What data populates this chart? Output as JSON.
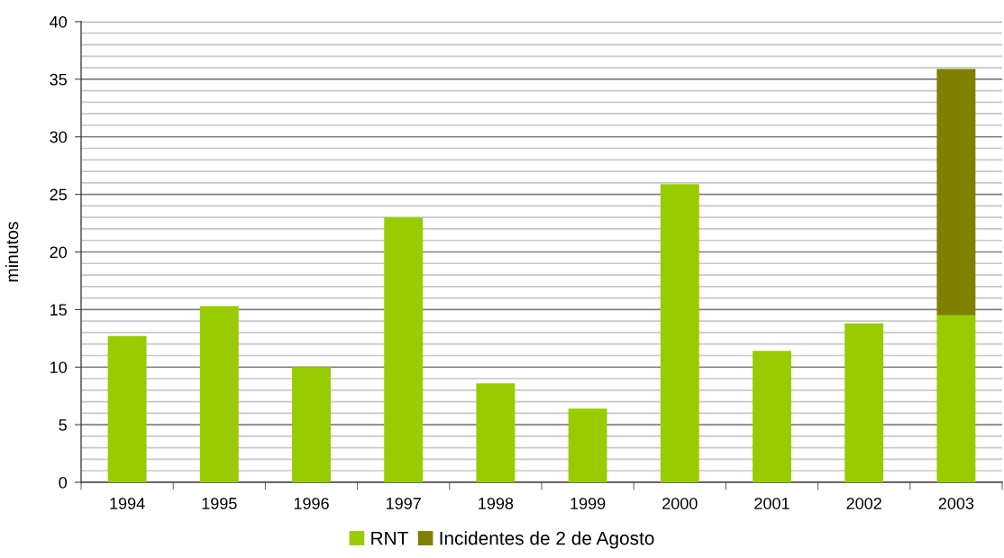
{
  "chart_data": {
    "type": "bar",
    "ylabel": "minutos",
    "categories": [
      "1994",
      "1995",
      "1996",
      "1997",
      "1998",
      "1999",
      "2000",
      "2001",
      "2002",
      "2003"
    ],
    "series": [
      {
        "name": "RNT",
        "color": "#99cc00",
        "values": [
          12.7,
          15.3,
          10.0,
          23.0,
          8.6,
          6.4,
          25.9,
          11.4,
          13.8,
          14.5
        ]
      },
      {
        "name": "Incidentes de 2 de Agosto",
        "color": "#808000",
        "values": [
          null,
          null,
          null,
          null,
          null,
          null,
          null,
          null,
          null,
          21.4
        ]
      }
    ],
    "stacked": true,
    "ylim": [
      0,
      40
    ],
    "yticks": [
      0,
      5,
      10,
      15,
      20,
      25,
      30,
      35,
      40
    ],
    "grid": "y",
    "legend": "bottom"
  }
}
